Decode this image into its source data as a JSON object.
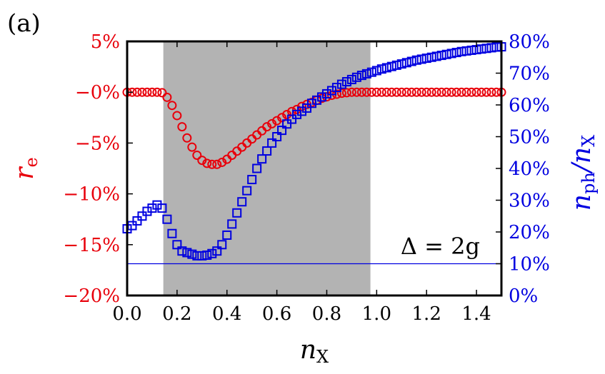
{
  "panel_label": "(a)",
  "chart_data": {
    "type": "scatter",
    "xlabel": "n",
    "xlabel_sub": "X",
    "ylabel_left": "r",
    "ylabel_left_sub": "e",
    "ylabel_right": "n",
    "ylabel_right_sub": "ph",
    "ylabel_right_slash": "/n",
    "ylabel_right_sub2": "X",
    "xlim": [
      0.0,
      1.5
    ],
    "ylim_left": [
      -20,
      5
    ],
    "ylim_right": [
      0,
      80
    ],
    "x_ticks": [
      "0.0",
      "0.2",
      "0.4",
      "0.6",
      "0.8",
      "1.0",
      "1.2",
      "1.4"
    ],
    "x_tick_values": [
      0.0,
      0.2,
      0.4,
      0.6,
      0.8,
      1.0,
      1.2,
      1.4
    ],
    "left_ticks": [
      "5%",
      "−0%",
      "−5%",
      "−10%",
      "−15%",
      "−20%"
    ],
    "left_tick_values": [
      5,
      0,
      -5,
      -10,
      -15,
      -20
    ],
    "right_ticks": [
      "80%",
      "70%",
      "60%",
      "50%",
      "40%",
      "30%",
      "20%",
      "10%",
      "0%"
    ],
    "right_tick_values": [
      80,
      70,
      60,
      50,
      40,
      30,
      20,
      10,
      0
    ],
    "shaded_region": {
      "x_start": 0.145,
      "x_end": 0.975,
      "color": "#b3b3b3"
    },
    "hline": {
      "axis": "right",
      "y": 10,
      "color": "#0000e0"
    },
    "annotation": "Δ = 2g",
    "colors": {
      "re": "#e8000b",
      "nph": "#0000e0"
    },
    "series": [
      {
        "axis": "left",
        "marker": "circle",
        "x": [
          0.0,
          0.02,
          0.04,
          0.06,
          0.08,
          0.1,
          0.12,
          0.14,
          0.16,
          0.18,
          0.2,
          0.22,
          0.24,
          0.26,
          0.28,
          0.3,
          0.32,
          0.34,
          0.36,
          0.38,
          0.4,
          0.42,
          0.44,
          0.46,
          0.48,
          0.5,
          0.52,
          0.54,
          0.56,
          0.58,
          0.6,
          0.62,
          0.64,
          0.66,
          0.68,
          0.7,
          0.72,
          0.74,
          0.76,
          0.78,
          0.8,
          0.82,
          0.84,
          0.86,
          0.88,
          0.9,
          0.92,
          0.94,
          0.96,
          0.98,
          1.0,
          1.02,
          1.04,
          1.06,
          1.08,
          1.1,
          1.12,
          1.14,
          1.16,
          1.18,
          1.2,
          1.22,
          1.24,
          1.26,
          1.28,
          1.3,
          1.32,
          1.34,
          1.36,
          1.38,
          1.4,
          1.42,
          1.44,
          1.46,
          1.48,
          1.5
        ],
        "y": [
          0,
          0,
          0,
          0,
          0,
          0,
          0,
          -0.05,
          -0.5,
          -1.3,
          -2.3,
          -3.4,
          -4.5,
          -5.4,
          -6.2,
          -6.7,
          -7.0,
          -7.1,
          -7.1,
          -6.9,
          -6.6,
          -6.2,
          -5.8,
          -5.4,
          -5.0,
          -4.6,
          -4.2,
          -3.8,
          -3.4,
          -3.1,
          -2.8,
          -2.5,
          -2.2,
          -1.9,
          -1.7,
          -1.4,
          -1.2,
          -1.0,
          -0.8,
          -0.6,
          -0.45,
          -0.3,
          -0.2,
          -0.1,
          -0.05,
          0,
          0,
          0,
          0,
          0,
          0,
          0,
          0,
          0,
          0,
          0,
          0,
          0,
          0,
          0,
          0,
          0,
          0,
          0,
          0,
          0,
          0,
          0,
          0,
          0,
          0,
          0,
          0,
          0,
          0,
          0
        ]
      },
      {
        "axis": "right",
        "marker": "square",
        "x": [
          0.0,
          0.02,
          0.04,
          0.06,
          0.08,
          0.1,
          0.12,
          0.14,
          0.16,
          0.18,
          0.2,
          0.22,
          0.24,
          0.26,
          0.28,
          0.3,
          0.32,
          0.34,
          0.36,
          0.38,
          0.4,
          0.42,
          0.44,
          0.46,
          0.48,
          0.5,
          0.52,
          0.54,
          0.56,
          0.58,
          0.6,
          0.62,
          0.64,
          0.66,
          0.68,
          0.7,
          0.72,
          0.74,
          0.76,
          0.78,
          0.8,
          0.82,
          0.84,
          0.86,
          0.88,
          0.9,
          0.92,
          0.94,
          0.96,
          0.98,
          1.0,
          1.02,
          1.04,
          1.06,
          1.08,
          1.1,
          1.12,
          1.14,
          1.16,
          1.18,
          1.2,
          1.22,
          1.24,
          1.26,
          1.28,
          1.3,
          1.32,
          1.34,
          1.36,
          1.38,
          1.4,
          1.42,
          1.44,
          1.46,
          1.48,
          1.5
        ],
        "y": [
          21,
          22,
          23.5,
          25,
          26.5,
          27.5,
          28.5,
          27.5,
          24,
          19.5,
          16,
          14,
          13.5,
          13,
          12.5,
          12.5,
          12.7,
          13.2,
          14,
          16,
          19,
          22.5,
          26,
          29.5,
          33,
          36.5,
          40,
          43,
          45.5,
          48,
          50,
          52,
          54,
          55.5,
          57,
          58,
          59,
          60.5,
          61.5,
          62.5,
          63.5,
          64.5,
          65.5,
          66.5,
          67.3,
          68,
          68.7,
          69.3,
          69.8,
          70.3,
          70.8,
          71.3,
          71.7,
          72.1,
          72.5,
          72.9,
          73.3,
          73.7,
          74.1,
          74.4,
          74.7,
          75,
          75.3,
          75.6,
          75.9,
          76.2,
          76.5,
          76.8,
          77,
          77.2,
          77.4,
          77.6,
          77.8,
          78,
          78.2,
          78.3
        ]
      }
    ]
  }
}
